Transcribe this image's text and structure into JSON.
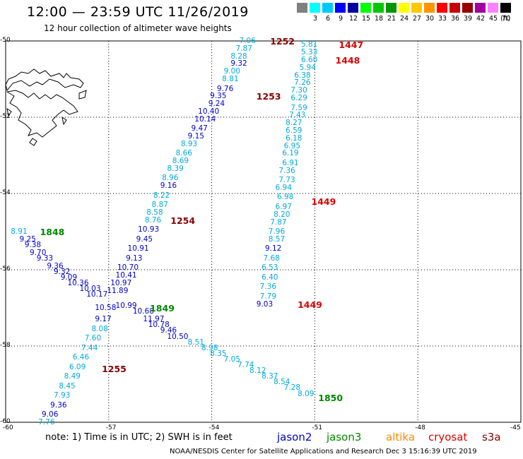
{
  "header": {
    "title": "12:00 — 23:59 UTC 11/26/2019",
    "subtitle": "12 hour collection of altimeter wave heights"
  },
  "legend": {
    "bins": [
      {
        "label": "",
        "color": "#808080"
      },
      {
        "label": "3",
        "color": "#00ffff"
      },
      {
        "label": "6",
        "color": "#00c8ff"
      },
      {
        "label": "9",
        "color": "#0000ff"
      },
      {
        "label": "12",
        "color": "#0000a0"
      },
      {
        "label": "15",
        "color": "#00ff00"
      },
      {
        "label": "18",
        "color": "#00c800"
      },
      {
        "label": "21",
        "color": "#009600"
      },
      {
        "label": "24",
        "color": "#ffff00"
      },
      {
        "label": "27",
        "color": "#ffc800"
      },
      {
        "label": "30",
        "color": "#ff9600"
      },
      {
        "label": "33",
        "color": "#ff0000"
      },
      {
        "label": "36",
        "color": "#c80000"
      },
      {
        "label": "39",
        "color": "#960000"
      },
      {
        "label": "42",
        "color": "#a000a0"
      },
      {
        "label": "45",
        "color": "#ff80ff"
      },
      {
        "label": "70",
        "color": "#000000"
      }
    ],
    "unit": "(ft)"
  },
  "axes": {
    "lon_ticks": [
      "-60",
      "-57",
      "-54",
      "-51",
      "-48",
      "-45"
    ],
    "lat_ticks": [
      "-50",
      "-52",
      "-54",
      "-56",
      "-58",
      "-60"
    ],
    "lon_range": [
      -60,
      -45
    ],
    "lat_range": [
      -60,
      -50
    ],
    "grid": true
  },
  "colors": {
    "jason2": "#0000cc",
    "jason3": "#008800",
    "altika": "#ff8800",
    "cryosat": "#dd0000",
    "s3a": "#880000",
    "light": "#00aadd"
  },
  "tracks": [
    {
      "name": "track-1252-1255",
      "color_class": "s3a",
      "points": [
        {
          "v": "7.06",
          "lon": -53.2,
          "lat": -50.0,
          "c": "light"
        },
        {
          "v": "7.87",
          "lon": -53.3,
          "lat": -50.2,
          "c": "light"
        },
        {
          "v": "8.28",
          "lon": -53.45,
          "lat": -50.4,
          "c": "light"
        },
        {
          "v": "9.32",
          "lon": -53.45,
          "lat": -50.6,
          "c": "dark"
        },
        {
          "v": "9.00",
          "lon": -53.65,
          "lat": -50.8,
          "c": "light"
        },
        {
          "v": "8.81",
          "lon": -53.7,
          "lat": -51.0,
          "c": "light"
        },
        {
          "v": "9.76",
          "lon": -53.85,
          "lat": -51.25,
          "c": "dark"
        },
        {
          "v": "9.35",
          "lon": -54.05,
          "lat": -51.45,
          "c": "dark"
        },
        {
          "v": "9.24",
          "lon": -54.1,
          "lat": -51.65,
          "c": "dark"
        },
        {
          "v": "10.40",
          "lon": -54.4,
          "lat": -51.85,
          "c": "dark"
        },
        {
          "v": "10.14",
          "lon": -54.5,
          "lat": -52.05,
          "c": "dark"
        },
        {
          "v": "9.47",
          "lon": -54.6,
          "lat": -52.3,
          "c": "dark"
        },
        {
          "v": "9.15",
          "lon": -54.7,
          "lat": -52.5,
          "c": "dark"
        },
        {
          "v": "8.93",
          "lon": -54.9,
          "lat": -52.7,
          "c": "light"
        },
        {
          "v": "8.66",
          "lon": -55.05,
          "lat": -52.95,
          "c": "light"
        },
        {
          "v": "8.69",
          "lon": -55.15,
          "lat": -53.15,
          "c": "light"
        },
        {
          "v": "8.39",
          "lon": -55.3,
          "lat": -53.35,
          "c": "light"
        },
        {
          "v": "8.96",
          "lon": -55.45,
          "lat": -53.6,
          "c": "light"
        },
        {
          "v": "9.16",
          "lon": -55.5,
          "lat": -53.8,
          "c": "dark"
        },
        {
          "v": "8.22",
          "lon": -55.7,
          "lat": -54.05,
          "c": "light"
        },
        {
          "v": "8.87",
          "lon": -55.75,
          "lat": -54.3,
          "c": "light"
        },
        {
          "v": "8.58",
          "lon": -55.9,
          "lat": -54.5,
          "c": "light"
        },
        {
          "v": "8.76",
          "lon": -55.95,
          "lat": -54.7,
          "c": "light"
        },
        {
          "v": "10.93",
          "lon": -56.15,
          "lat": -54.95,
          "c": "dark"
        },
        {
          "v": "9.45",
          "lon": -56.2,
          "lat": -55.2,
          "c": "dark"
        },
        {
          "v": "10.91",
          "lon": -56.45,
          "lat": -55.45,
          "c": "dark"
        },
        {
          "v": "9.13",
          "lon": -56.5,
          "lat": -55.7,
          "c": "dark"
        },
        {
          "v": "10.70",
          "lon": -56.75,
          "lat": -55.95,
          "c": "dark"
        },
        {
          "v": "10.41",
          "lon": -56.8,
          "lat": -56.15,
          "c": "dark"
        },
        {
          "v": "10.97",
          "lon": -56.95,
          "lat": -56.35,
          "c": "dark"
        },
        {
          "v": "11.89",
          "lon": -57.05,
          "lat": -56.55,
          "c": "dark"
        },
        {
          "v": "10.58",
          "lon": -57.4,
          "lat": -57.0,
          "c": "dark"
        },
        {
          "v": "9.17",
          "lon": -57.4,
          "lat": -57.3,
          "c": "dark"
        },
        {
          "v": "8.08",
          "lon": -57.5,
          "lat": -57.55,
          "c": "light"
        },
        {
          "v": "7.60",
          "lon": -57.7,
          "lat": -57.8,
          "c": "light"
        },
        {
          "v": "7.44",
          "lon": -57.8,
          "lat": -58.05,
          "c": "light"
        },
        {
          "v": "6.46",
          "lon": -58.05,
          "lat": -58.3,
          "c": "light"
        },
        {
          "v": "6.09",
          "lon": -58.15,
          "lat": -58.55,
          "c": "light"
        },
        {
          "v": "8.49",
          "lon": -58.3,
          "lat": -58.8,
          "c": "light"
        },
        {
          "v": "8.45",
          "lon": -58.45,
          "lat": -59.05,
          "c": "light"
        },
        {
          "v": "7.93",
          "lon": -58.6,
          "lat": -59.3,
          "c": "light"
        },
        {
          "v": "9.36",
          "lon": -58.7,
          "lat": -59.55,
          "c": "dark"
        },
        {
          "v": "9.06",
          "lon": -58.95,
          "lat": -59.8,
          "c": "dark"
        },
        {
          "v": "7.76",
          "lon": -59.05,
          "lat": -60.0,
          "c": "light"
        }
      ],
      "labels": [
        {
          "t": "1252",
          "lon": -52.3,
          "lat": -50.0,
          "c": "s3a"
        },
        {
          "t": "1253",
          "lon": -52.7,
          "lat": -51.45,
          "c": "s3a"
        },
        {
          "t": "1254",
          "lon": -55.2,
          "lat": -54.7,
          "c": "s3a"
        },
        {
          "t": "1255",
          "lon": -57.2,
          "lat": -58.6,
          "c": "s3a"
        }
      ]
    },
    {
      "name": "track-1447-1449",
      "color_class": "cryosat",
      "points": [
        {
          "v": "5.81",
          "lon": -51.4,
          "lat": -50.1,
          "c": "light"
        },
        {
          "v": "5.33",
          "lon": -51.4,
          "lat": -50.3,
          "c": "light"
        },
        {
          "v": "6.60",
          "lon": -51.4,
          "lat": -50.5,
          "c": "light"
        },
        {
          "v": "5.94",
          "lon": -51.45,
          "lat": -50.7,
          "c": "light"
        },
        {
          "v": "6.38",
          "lon": -51.6,
          "lat": -50.9,
          "c": "light"
        },
        {
          "v": "7.26",
          "lon": -51.6,
          "lat": -51.1,
          "c": "light"
        },
        {
          "v": "7.30",
          "lon": -51.7,
          "lat": -51.3,
          "c": "light"
        },
        {
          "v": "6.29",
          "lon": -51.7,
          "lat": -51.5,
          "c": "light"
        },
        {
          "v": "7.59",
          "lon": -51.7,
          "lat": -51.75,
          "c": "light"
        },
        {
          "v": "7.43",
          "lon": -51.75,
          "lat": -51.95,
          "c": "light"
        },
        {
          "v": "8.27",
          "lon": -51.85,
          "lat": -52.15,
          "c": "light"
        },
        {
          "v": "6.59",
          "lon": -51.85,
          "lat": -52.35,
          "c": "light"
        },
        {
          "v": "6.18",
          "lon": -51.85,
          "lat": -52.55,
          "c": "light"
        },
        {
          "v": "6.95",
          "lon": -51.9,
          "lat": -52.75,
          "c": "light"
        },
        {
          "v": "6.19",
          "lon": -51.95,
          "lat": -52.95,
          "c": "light"
        },
        {
          "v": "6.91",
          "lon": -51.95,
          "lat": -53.2,
          "c": "light"
        },
        {
          "v": "7.36",
          "lon": -52.05,
          "lat": -53.4,
          "c": "light"
        },
        {
          "v": "7.73",
          "lon": -52.05,
          "lat": -53.65,
          "c": "light"
        },
        {
          "v": "6.94",
          "lon": -52.15,
          "lat": -53.85,
          "c": "light"
        },
        {
          "v": "6.98",
          "lon": -52.1,
          "lat": -54.1,
          "c": "light"
        },
        {
          "v": "6.97",
          "lon": -52.15,
          "lat": -54.35,
          "c": "light"
        },
        {
          "v": "8.20",
          "lon": -52.2,
          "lat": -54.55,
          "c": "light"
        },
        {
          "v": "7.87",
          "lon": -52.3,
          "lat": -54.75,
          "c": "light"
        },
        {
          "v": "7.96",
          "lon": -52.35,
          "lat": -55.0,
          "c": "light"
        },
        {
          "v": "8.57",
          "lon": -52.35,
          "lat": -55.2,
          "c": "light"
        },
        {
          "v": "9.12",
          "lon": -52.45,
          "lat": -55.45,
          "c": "dark"
        },
        {
          "v": "7.68",
          "lon": -52.5,
          "lat": -55.7,
          "c": "light"
        },
        {
          "v": "6.53",
          "lon": -52.55,
          "lat": -55.95,
          "c": "light"
        },
        {
          "v": "6.40",
          "lon": -52.55,
          "lat": -56.2,
          "c": "light"
        },
        {
          "v": "7.36",
          "lon": -52.6,
          "lat": -56.45,
          "c": "light"
        },
        {
          "v": "7.79",
          "lon": -52.6,
          "lat": -56.7,
          "c": "light"
        },
        {
          "v": "9.03",
          "lon": -52.7,
          "lat": -56.9,
          "c": "dark"
        }
      ],
      "labels": [
        {
          "t": "1447",
          "lon": -50.3,
          "lat": -50.1,
          "c": "cryosat"
        },
        {
          "t": "1448",
          "lon": -50.4,
          "lat": -50.5,
          "c": "cryosat"
        },
        {
          "t": "1449",
          "lon": -51.1,
          "lat": -54.2,
          "c": "cryosat"
        },
        {
          "t": "1449",
          "lon": -51.5,
          "lat": -56.9,
          "c": "cryosat"
        }
      ]
    },
    {
      "name": "track-1848-1850",
      "color_class": "jason3",
      "points": [
        {
          "v": "8.91",
          "lon": -59.85,
          "lat": -55.0,
          "c": "light"
        },
        {
          "v": "9.25",
          "lon": -59.6,
          "lat": -55.2,
          "c": "dark"
        },
        {
          "v": "9.38",
          "lon": -59.45,
          "lat": -55.35,
          "c": "dark"
        },
        {
          "v": "9.70",
          "lon": -59.3,
          "lat": -55.55,
          "c": "dark"
        },
        {
          "v": "9.33",
          "lon": -59.1,
          "lat": -55.7,
          "c": "dark"
        },
        {
          "v": "9.36",
          "lon": -58.8,
          "lat": -55.9,
          "c": "dark"
        },
        {
          "v": "9.32",
          "lon": -58.6,
          "lat": -56.05,
          "c": "dark"
        },
        {
          "v": "9.09",
          "lon": -58.4,
          "lat": -56.2,
          "c": "dark"
        },
        {
          "v": "10.36",
          "lon": -58.2,
          "lat": -56.35,
          "c": "dark"
        },
        {
          "v": "10.03",
          "lon": -57.85,
          "lat": -56.5,
          "c": "dark"
        },
        {
          "v": "10.17",
          "lon": -57.65,
          "lat": -56.65,
          "c": "dark"
        },
        {
          "v": "10.99",
          "lon": -56.8,
          "lat": -56.95,
          "c": "dark"
        },
        {
          "v": "10.68",
          "lon": -56.3,
          "lat": -57.1,
          "c": "dark"
        },
        {
          "v": "11.97",
          "lon": -56.0,
          "lat": -57.3,
          "c": "dark"
        },
        {
          "v": "10.78",
          "lon": -55.85,
          "lat": -57.45,
          "c": "dark"
        },
        {
          "v": "9.46",
          "lon": -55.5,
          "lat": -57.6,
          "c": "dark"
        },
        {
          "v": "10.50",
          "lon": -55.3,
          "lat": -57.75,
          "c": "dark"
        },
        {
          "v": "8.51",
          "lon": -54.7,
          "lat": -57.9,
          "c": "light"
        },
        {
          "v": "8.98",
          "lon": -54.3,
          "lat": -58.05,
          "c": "light"
        },
        {
          "v": "8.35",
          "lon": -54.05,
          "lat": -58.2,
          "c": "light"
        },
        {
          "v": "7.05",
          "lon": -53.65,
          "lat": -58.35,
          "c": "light"
        },
        {
          "v": "7.74",
          "lon": -53.25,
          "lat": -58.5,
          "c": "light"
        },
        {
          "v": "8.12",
          "lon": -52.9,
          "lat": -58.65,
          "c": "light"
        },
        {
          "v": "8.37",
          "lon": -52.55,
          "lat": -58.8,
          "c": "light"
        },
        {
          "v": "8.54",
          "lon": -52.2,
          "lat": -58.95,
          "c": "light"
        },
        {
          "v": "7.28",
          "lon": -51.9,
          "lat": -59.1,
          "c": "light"
        },
        {
          "v": "8.09",
          "lon": -51.5,
          "lat": -59.25,
          "c": "light"
        }
      ],
      "labels": [
        {
          "t": "1848",
          "lon": -59.0,
          "lat": -55.0,
          "c": "jason3"
        },
        {
          "t": "1849",
          "lon": -55.8,
          "lat": -57.0,
          "c": "jason3"
        },
        {
          "t": "1850",
          "lon": -50.9,
          "lat": -59.35,
          "c": "jason3"
        }
      ]
    }
  ],
  "footer": {
    "note": "note:  1) Time is in UTC;  2) SWH is in feet",
    "missions": [
      {
        "label": "jason2",
        "key": "jason2"
      },
      {
        "label": "jason3",
        "key": "jason3"
      },
      {
        "label": "altika",
        "key": "altika"
      },
      {
        "label": "cryosat",
        "key": "cryosat"
      },
      {
        "label": "s3a",
        "key": "s3a"
      }
    ],
    "credit": "NOAA/NESDIS Center for Satellite Applications and Research     Dec  3 15:16:39 UTC 2019"
  }
}
